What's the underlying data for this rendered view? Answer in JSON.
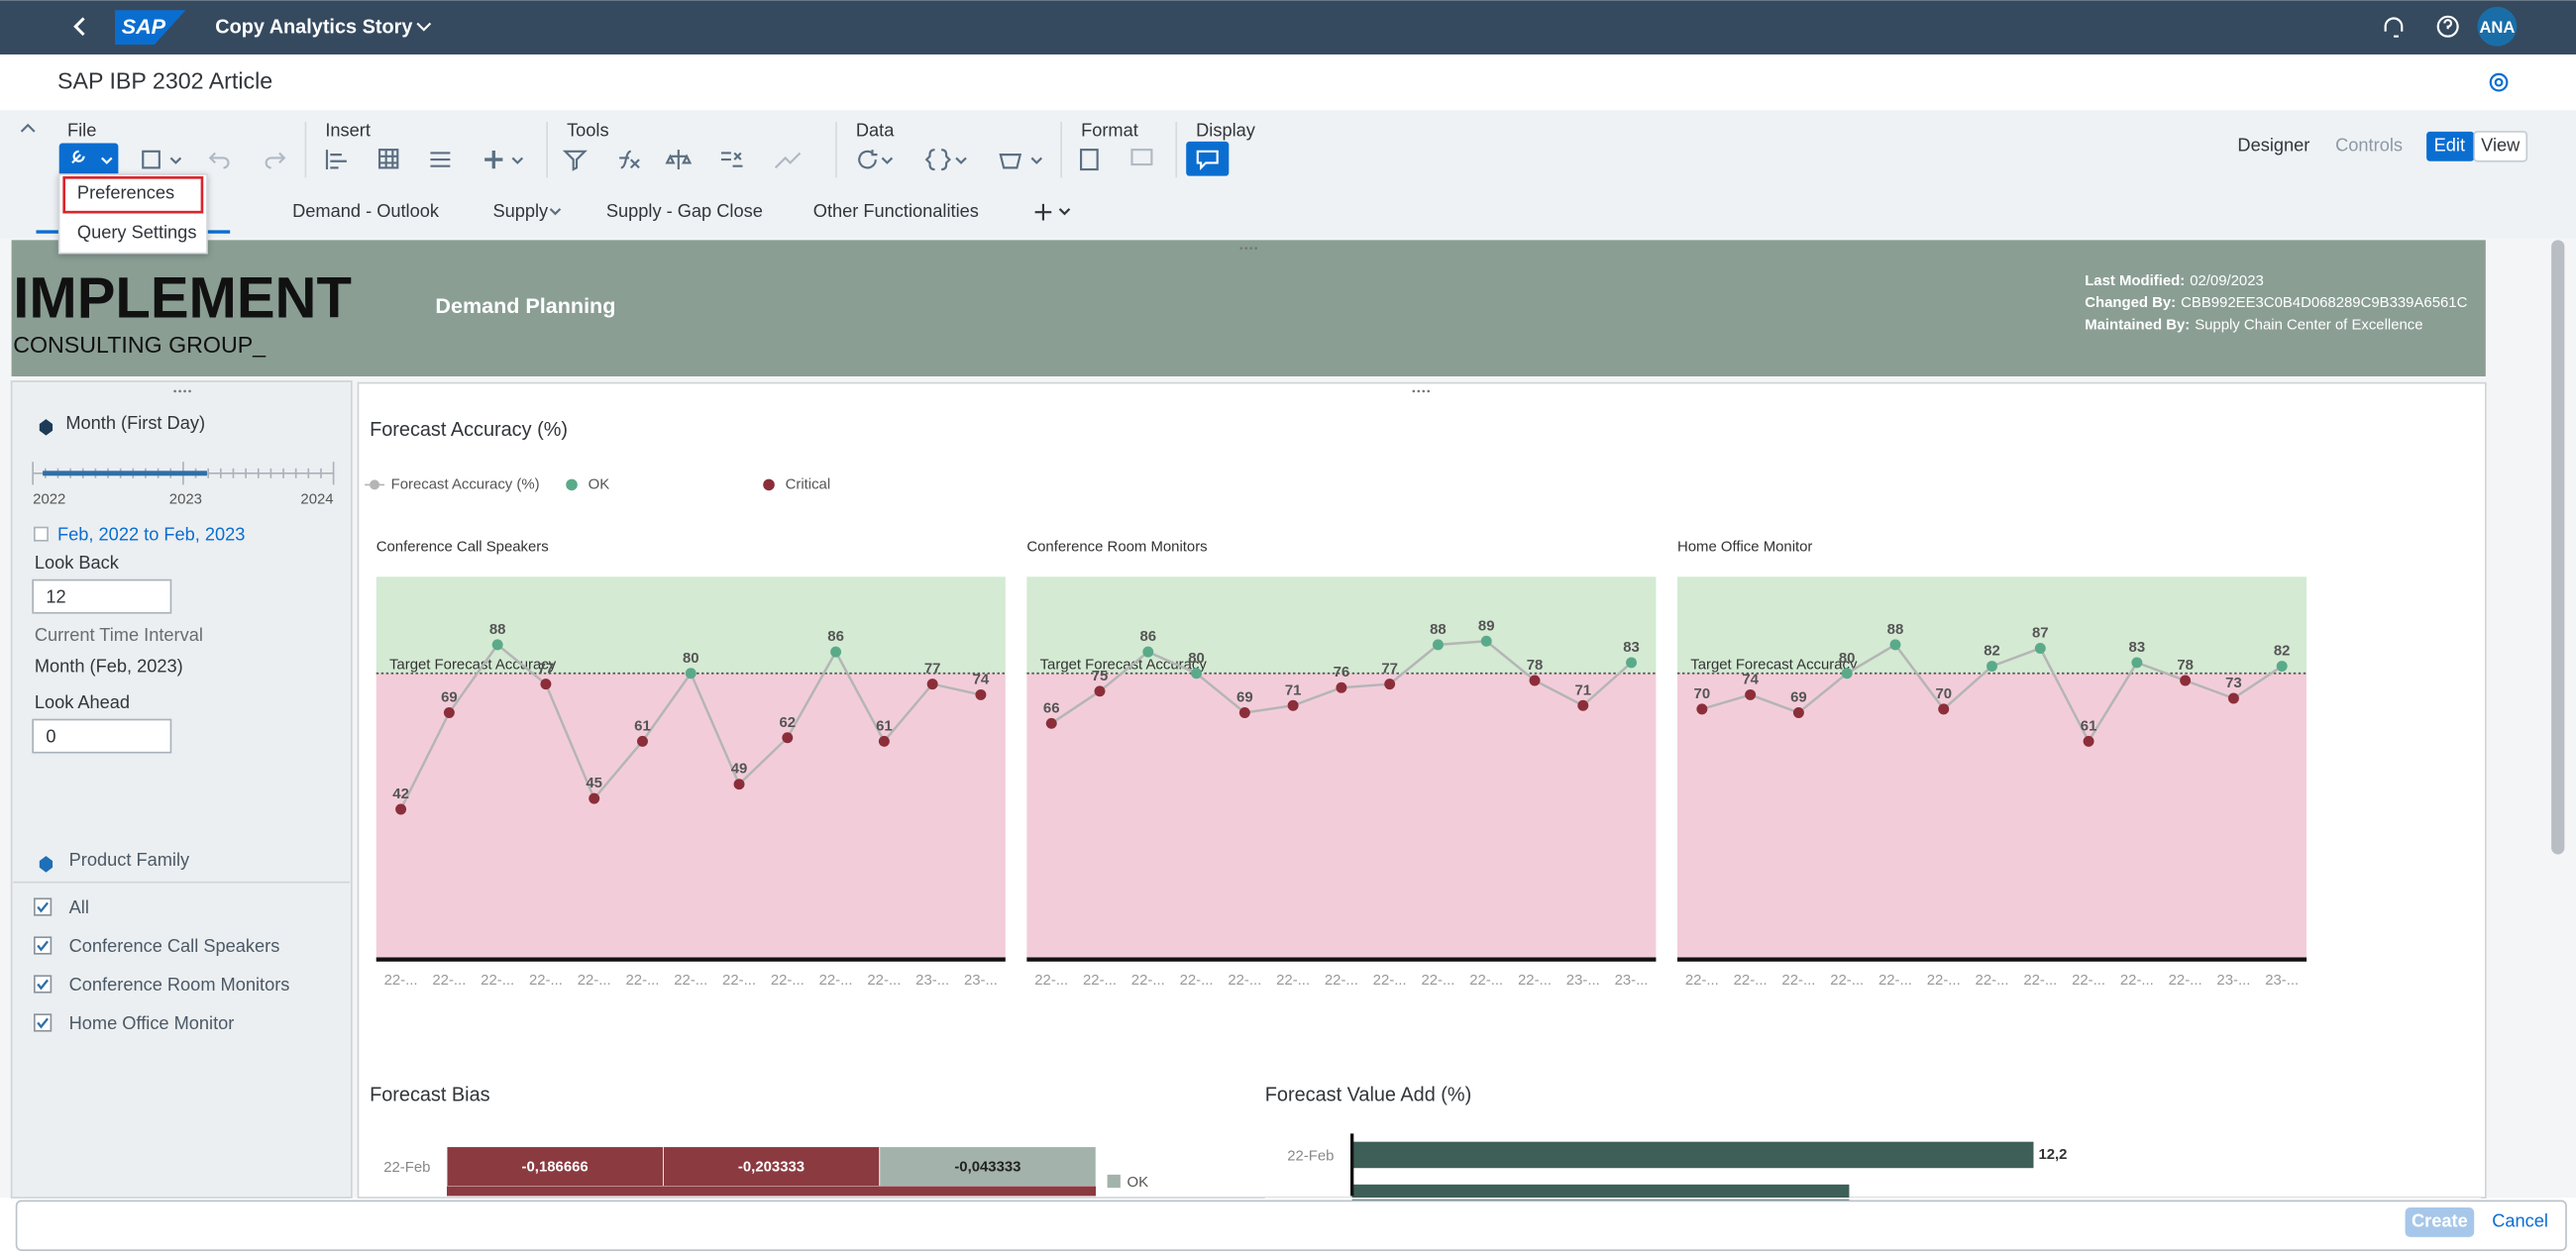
{
  "shell": {
    "app_title": "Copy Analytics Story",
    "logo": "SAP",
    "avatar": "ANA"
  },
  "story_title": "SAP IBP 2302 Article",
  "toolbar": {
    "groups": [
      "File",
      "Insert",
      "Tools",
      "Data",
      "Format",
      "Display"
    ],
    "modes": [
      "Designer",
      "Controls"
    ],
    "toggle": [
      "Edit",
      "View"
    ]
  },
  "file_menu": [
    "Preferences",
    "Query Settings"
  ],
  "tabs": [
    "Demand - Outlook",
    "Supply",
    "Supply - Gap Close",
    "Other Functionalities"
  ],
  "header": {
    "brand": "IMPLEMENT",
    "brand_sub": "CONSULTING GROUP_",
    "page": "Demand Planning",
    "meta": [
      {
        "label": "Last Modified:",
        "value": "02/09/2023"
      },
      {
        "label": "Changed By:",
        "value": "CBB992EE3C0B4D068289C9B339A6561C"
      },
      {
        "label": "Maintained By:",
        "value": "Supply Chain Center of Excellence"
      }
    ]
  },
  "filters": {
    "time_title": "Month (First Day)",
    "timeline": [
      "2022",
      "2023",
      "2024"
    ],
    "range": "Feb, 2022 to Feb, 2023",
    "look_back_label": "Look Back",
    "look_back": "12",
    "interval_label": "Current Time Interval",
    "interval": "Month (Feb, 2023)",
    "look_ahead_label": "Look Ahead",
    "look_ahead": "0",
    "family_title": "Product Family",
    "family": [
      "All",
      "Conference Call Speakers",
      "Conference Room Monitors",
      "Home Office Monitor"
    ]
  },
  "accuracy": {
    "type": "line",
    "title": "Forecast Accuracy (%)",
    "legend": [
      "Forecast Accuracy (%)",
      "OK",
      "Critical"
    ],
    "colors": {
      "line": "#b5b5b5",
      "ok": "#5aaa8a",
      "critical": "#8b2e3a",
      "ok_band": "#d4ead3",
      "critical_band": "#f2cdd9"
    },
    "target_label": "Target Forecast Accuracy",
    "target": 80,
    "ylim": [
      0,
      107
    ],
    "panels": [
      {
        "title": "Conference Call Speakers",
        "categories": [
          "22-...",
          "22-...",
          "22-...",
          "22-...",
          "22-...",
          "22-...",
          "22-...",
          "22-...",
          "22-...",
          "22-...",
          "22-...",
          "23-...",
          "23-..."
        ],
        "values": [
          42,
          69,
          88,
          77,
          45,
          61,
          80,
          49,
          62,
          86,
          61,
          77,
          74
        ]
      },
      {
        "title": "Conference Room Monitors",
        "categories": [
          "22-...",
          "22-...",
          "22-...",
          "22-...",
          "22-...",
          "22-...",
          "22-...",
          "22-...",
          "22-...",
          "22-...",
          "22-...",
          "23-...",
          "23-..."
        ],
        "values": [
          66,
          75,
          86,
          80,
          69,
          71,
          76,
          77,
          88,
          89,
          78,
          71,
          83
        ]
      },
      {
        "title": "Home Office Monitor",
        "categories": [
          "22-...",
          "22-...",
          "22-...",
          "22-...",
          "22-...",
          "22-...",
          "22-...",
          "22-...",
          "22-...",
          "22-...",
          "22-...",
          "23-...",
          "23-..."
        ],
        "values": [
          70,
          74,
          69,
          80,
          88,
          70,
          82,
          87,
          61,
          83,
          78,
          73,
          82
        ]
      }
    ]
  },
  "bias": {
    "type": "heatmap",
    "title": "Forecast Bias",
    "category": "22-Feb",
    "values": [
      -0.186666,
      -0.203333,
      -0.043333
    ],
    "value_labels": [
      "-0,186666",
      "-0,203333",
      "-0,043333"
    ],
    "colors": [
      "#8b3a40",
      "#8b3a40",
      "#a3b3ab"
    ],
    "legend": "OK",
    "legend_color": "#a3b3ab"
  },
  "value_add": {
    "type": "bar",
    "title": "Forecast Value Add (%)",
    "categories": [
      "22-Feb",
      null
    ],
    "values": [
      12.2,
      8.9
    ],
    "value_labels": [
      "12,2",
      null
    ],
    "color": "#3d5f57",
    "xlim": [
      0,
      20
    ]
  },
  "footer": {
    "create": "Create",
    "cancel": "Cancel"
  }
}
